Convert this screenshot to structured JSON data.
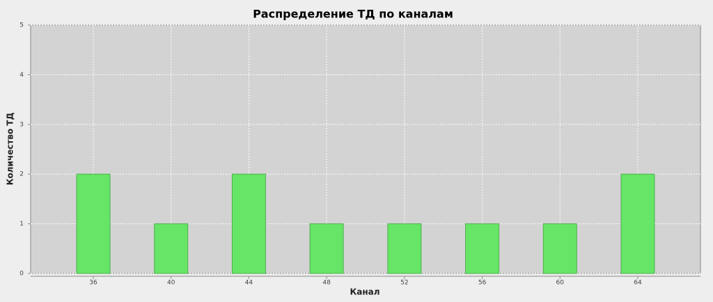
{
  "chart_data": {
    "type": "bar",
    "title": "Распределение ТД по каналам",
    "x_label": "Канал",
    "y_label": "Количество ТД",
    "categories": [
      "36",
      "40",
      "44",
      "48",
      "52",
      "56",
      "60",
      "64"
    ],
    "values": [
      2,
      1,
      2,
      1,
      1,
      1,
      1,
      2
    ],
    "color": "#66e566",
    "ylim": [
      0,
      5
    ],
    "yticks": [
      0,
      1,
      2,
      3,
      4,
      5
    ],
    "grid": true
  }
}
